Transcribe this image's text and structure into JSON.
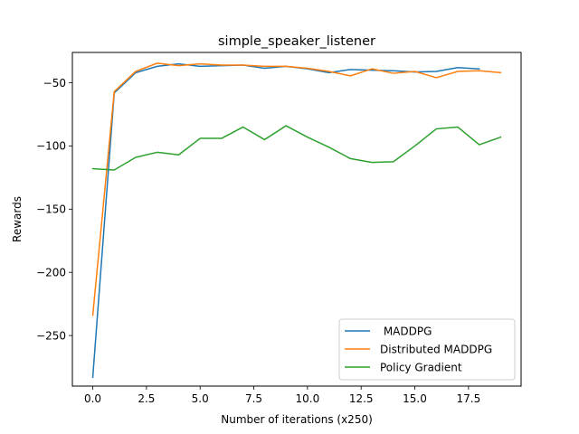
{
  "chart_data": {
    "type": "line",
    "title": "simple_speaker_listener",
    "xlabel": "Number of iterations (x250)",
    "ylabel": "Rewards",
    "xlim": [
      -0.95,
      19.95
    ],
    "ylim": [
      -290,
      -26
    ],
    "xticks": [
      0.0,
      2.5,
      5.0,
      7.5,
      10.0,
      12.5,
      15.0,
      17.5
    ],
    "xtick_labels": [
      "0.0",
      "2.5",
      "5.0",
      "7.5",
      "10.0",
      "12.5",
      "15.0",
      "17.5"
    ],
    "yticks": [
      -250,
      -200,
      -150,
      -100,
      -50
    ],
    "ytick_labels": [
      "−250",
      "−200",
      "−150",
      "−100",
      "−50"
    ],
    "grid": false,
    "legend_position": "lower-right",
    "series": [
      {
        "name": " MADDPG",
        "color": "#1f77b4",
        "x": [
          0,
          1,
          2,
          3,
          4,
          5,
          6,
          7,
          8,
          9,
          10,
          11,
          12,
          13,
          14,
          15,
          16,
          17,
          18
        ],
        "values": [
          -283,
          -58,
          -42,
          -37,
          -35,
          -37,
          -36.5,
          -36,
          -38.5,
          -37,
          -39,
          -42,
          -39.5,
          -40,
          -40.5,
          -41.5,
          -41,
          -38,
          -39
        ]
      },
      {
        "name": "Distributed MADDPG",
        "color": "#ff7f0e",
        "x": [
          0,
          1,
          2,
          3,
          4,
          5,
          6,
          7,
          8,
          9,
          10,
          11,
          12,
          13,
          14,
          15,
          16,
          17,
          18,
          19
        ],
        "values": [
          -234,
          -57,
          -41,
          -34.5,
          -36.5,
          -35,
          -36,
          -36,
          -37,
          -37,
          -38.5,
          -41,
          -44.5,
          -39,
          -42.5,
          -41,
          -46,
          -41,
          -40.5,
          -42
        ]
      },
      {
        "name": "Policy Gradient",
        "color": "#2ca02c",
        "x": [
          0,
          1,
          2,
          3,
          4,
          5,
          6,
          7,
          8,
          9,
          10,
          11,
          12,
          13,
          14,
          15,
          16,
          17,
          18,
          19
        ],
        "values": [
          -118,
          -119,
          -109,
          -105,
          -107,
          -94,
          -94,
          -85,
          -95,
          -84,
          -93,
          -101,
          -110,
          -113,
          -112.5,
          -100,
          -86.5,
          -85,
          -99,
          -93
        ]
      }
    ]
  }
}
